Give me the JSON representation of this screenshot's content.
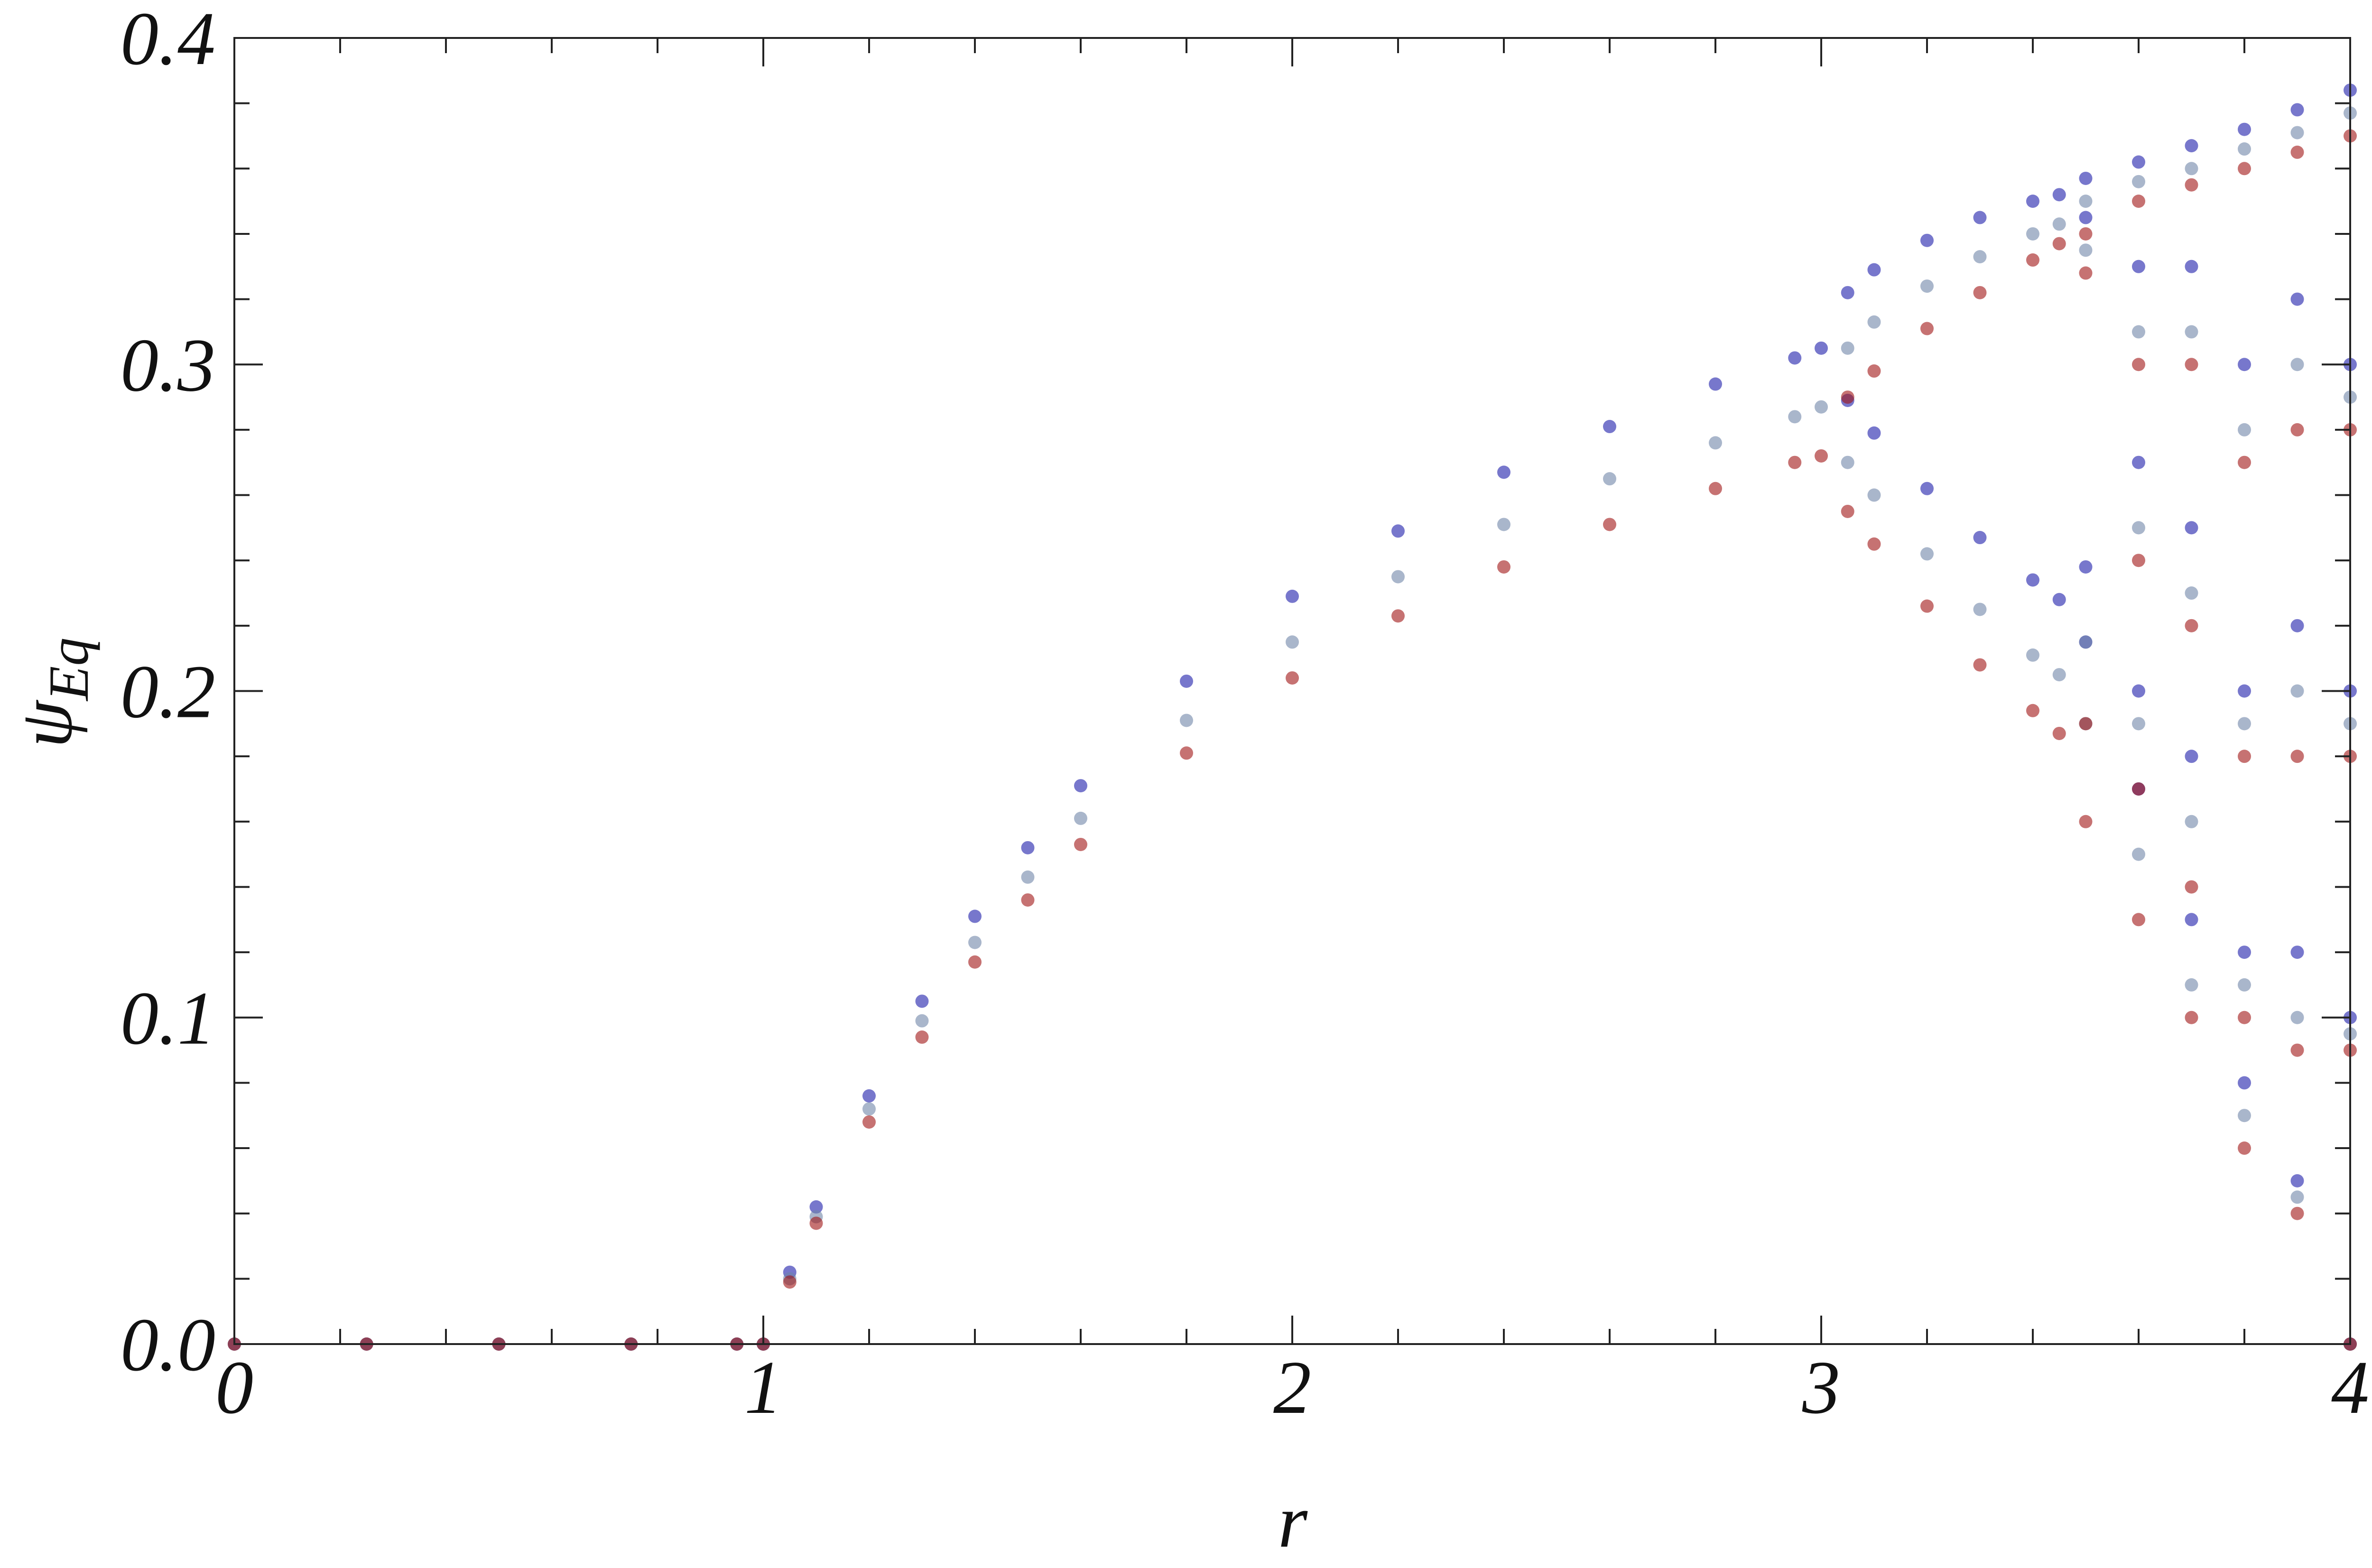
{
  "chart_data": {
    "type": "scatter",
    "xlabel": "r",
    "ylabel": {
      "symbol": "ψ",
      "subscript": "Eq"
    },
    "xlim": [
      0,
      4
    ],
    "ylim": [
      0,
      0.4
    ],
    "xticks": [
      0,
      1,
      2,
      3,
      4
    ],
    "yticks": [
      {
        "value": 0,
        "label": "0.0"
      },
      0.1,
      0.2,
      0.3,
      0.4
    ],
    "xminorticks": [
      0.2,
      0.4,
      0.6,
      0.8,
      1.2,
      1.4,
      1.6,
      1.8,
      2.2,
      2.4,
      2.6,
      2.8,
      3.2,
      3.4,
      3.6,
      3.8
    ],
    "yminorticks": [
      0.02,
      0.04,
      0.06,
      0.08,
      0.12,
      0.14,
      0.16,
      0.18,
      0.22,
      0.24,
      0.26,
      0.28,
      0.32,
      0.34,
      0.36,
      0.38
    ],
    "series": [
      {
        "color": "#1c1caa",
        "x": [
          0,
          0.25,
          0.5,
          0.75,
          0.95,
          1.0,
          1.05,
          1.1,
          1.2,
          1.3,
          1.4,
          1.5,
          1.6,
          1.8,
          2.0,
          2.2,
          2.4,
          2.6,
          2.8,
          2.95,
          3.0,
          3.05,
          3.05,
          3.1,
          3.1,
          3.2,
          3.2,
          3.3,
          3.3,
          3.4,
          3.4,
          3.45,
          3.45,
          3.5,
          3.5,
          3.5,
          3.5,
          3.6,
          3.6,
          3.6,
          3.6,
          3.6,
          3.7,
          3.7,
          3.7,
          3.7,
          3.7,
          3.8,
          3.8,
          3.8,
          3.8,
          3.8,
          3.9,
          3.9,
          3.9,
          3.9,
          3.9,
          4.0,
          4.0,
          4.0,
          4.0,
          4.0
        ],
        "values": [
          0,
          0,
          0,
          0,
          0,
          0,
          0.022,
          0.042,
          0.076,
          0.105,
          0.131,
          0.152,
          0.171,
          0.203,
          0.229,
          0.249,
          0.267,
          0.281,
          0.294,
          0.302,
          0.305,
          0.322,
          0.289,
          0.329,
          0.279,
          0.338,
          0.262,
          0.345,
          0.247,
          0.35,
          0.234,
          0.352,
          0.228,
          0.357,
          0.345,
          0.238,
          0.215,
          0.362,
          0.33,
          0.27,
          0.2,
          0.17,
          0.367,
          0.33,
          0.25,
          0.18,
          0.13,
          0.372,
          0.3,
          0.2,
          0.12,
          0.08,
          0.378,
          0.32,
          0.22,
          0.12,
          0.05,
          0.384,
          0.3,
          0.2,
          0.1,
          0.0
        ]
      },
      {
        "color": "#6f86a8",
        "x": [
          0,
          0.25,
          0.5,
          0.75,
          0.95,
          1.0,
          1.05,
          1.1,
          1.2,
          1.3,
          1.4,
          1.5,
          1.6,
          1.8,
          2.0,
          2.2,
          2.4,
          2.6,
          2.8,
          2.95,
          3.0,
          3.05,
          3.05,
          3.1,
          3.1,
          3.2,
          3.2,
          3.3,
          3.3,
          3.4,
          3.4,
          3.45,
          3.45,
          3.5,
          3.5,
          3.5,
          3.5,
          3.6,
          3.6,
          3.6,
          3.6,
          3.6,
          3.7,
          3.7,
          3.7,
          3.7,
          3.7,
          3.8,
          3.8,
          3.8,
          3.8,
          3.8,
          3.9,
          3.9,
          3.9,
          3.9,
          3.9,
          4.0,
          4.0,
          4.0,
          4.0,
          4.0
        ],
        "values": [
          0,
          0,
          0,
          0,
          0,
          0,
          0.02,
          0.039,
          0.072,
          0.099,
          0.123,
          0.143,
          0.161,
          0.191,
          0.215,
          0.235,
          0.251,
          0.265,
          0.276,
          0.284,
          0.287,
          0.305,
          0.27,
          0.313,
          0.26,
          0.324,
          0.242,
          0.333,
          0.225,
          0.34,
          0.211,
          0.343,
          0.205,
          0.35,
          0.335,
          0.215,
          0.19,
          0.356,
          0.31,
          0.25,
          0.19,
          0.15,
          0.36,
          0.31,
          0.23,
          0.16,
          0.11,
          0.366,
          0.28,
          0.19,
          0.11,
          0.07,
          0.371,
          0.3,
          0.2,
          0.1,
          0.045,
          0.377,
          0.29,
          0.19,
          0.095,
          0.0
        ]
      },
      {
        "color": "#a01414",
        "x": [
          0,
          0.25,
          0.5,
          0.75,
          0.95,
          1.0,
          1.05,
          1.1,
          1.2,
          1.3,
          1.4,
          1.5,
          1.6,
          1.8,
          2.0,
          2.2,
          2.4,
          2.6,
          2.8,
          2.95,
          3.0,
          3.05,
          3.05,
          3.1,
          3.1,
          3.2,
          3.2,
          3.3,
          3.3,
          3.4,
          3.4,
          3.45,
          3.45,
          3.5,
          3.5,
          3.5,
          3.5,
          3.6,
          3.6,
          3.6,
          3.6,
          3.6,
          3.7,
          3.7,
          3.7,
          3.7,
          3.7,
          3.8,
          3.8,
          3.8,
          3.8,
          3.8,
          3.9,
          3.9,
          3.9,
          3.9,
          3.9,
          4.0,
          4.0,
          4.0,
          4.0,
          4.0
        ],
        "values": [
          0,
          0,
          0,
          0,
          0,
          0,
          0.019,
          0.037,
          0.068,
          0.094,
          0.117,
          0.136,
          0.153,
          0.181,
          0.204,
          0.223,
          0.238,
          0.251,
          0.262,
          0.27,
          0.272,
          0.29,
          0.255,
          0.298,
          0.245,
          0.311,
          0.226,
          0.322,
          0.208,
          0.332,
          0.194,
          0.337,
          0.187,
          0.34,
          0.328,
          0.19,
          0.16,
          0.35,
          0.3,
          0.24,
          0.17,
          0.13,
          0.355,
          0.3,
          0.22,
          0.14,
          0.1,
          0.36,
          0.27,
          0.18,
          0.1,
          0.06,
          0.365,
          0.28,
          0.18,
          0.09,
          0.04,
          0.37,
          0.28,
          0.18,
          0.09,
          0.0
        ]
      }
    ]
  }
}
